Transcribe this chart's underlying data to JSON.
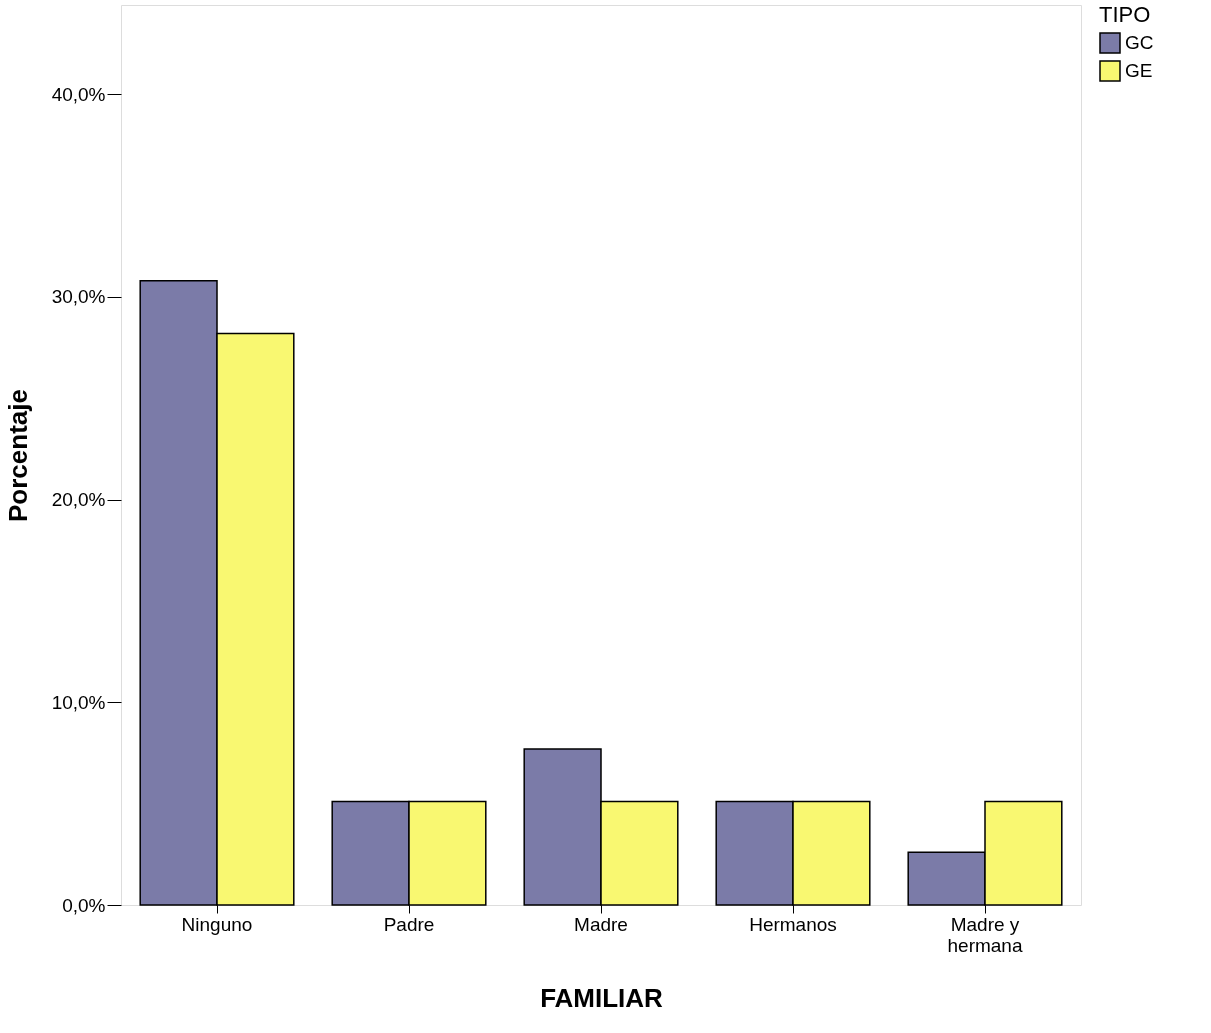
{
  "chart_data": {
    "type": "bar",
    "xlabel": "FAMILIAR",
    "ylabel": "Porcentaje",
    "legend_title": "TIPO",
    "categories": [
      "Ninguno",
      "Padre",
      "Madre",
      "Hermanos",
      "Madre y hermana"
    ],
    "series": [
      {
        "name": "GC",
        "color": "#7b7ba8",
        "values": [
          30.8,
          5.1,
          7.7,
          5.1,
          2.6
        ]
      },
      {
        "name": "GE",
        "color": "#f9f871",
        "values": [
          28.2,
          5.1,
          5.1,
          5.1,
          5.1
        ]
      }
    ],
    "ylim": [
      0,
      44.4
    ],
    "yticks": [
      {
        "value": 0,
        "label": "0,0%"
      },
      {
        "value": 10,
        "label": "10,0%"
      },
      {
        "value": 20,
        "label": "20,0%"
      },
      {
        "value": 30,
        "label": "30,0%"
      },
      {
        "value": 40,
        "label": "40,0%"
      }
    ],
    "grid": false,
    "legend": "top right"
  }
}
